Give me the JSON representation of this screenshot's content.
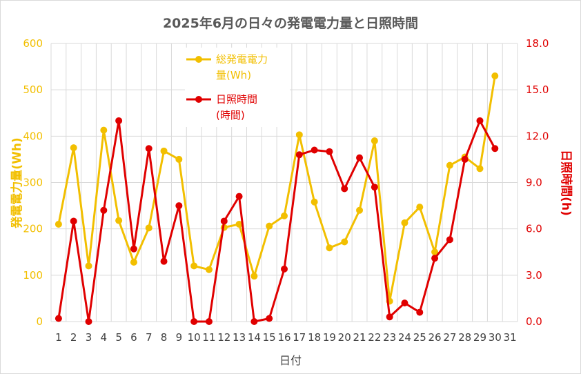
{
  "chart_data": {
    "type": "line",
    "title": "2025年6月の日々の発電電力量と日照時間",
    "xlabel": "日付",
    "ylabel_left": "発電電力量(Wh)",
    "ylabel_right": "日照時間(h)",
    "ylim_left": [
      0,
      600
    ],
    "ylim_right": [
      0,
      18
    ],
    "yticks_left": [
      "0",
      "100",
      "200",
      "300",
      "400",
      "500",
      "600"
    ],
    "yticks_right": [
      "0.0",
      "3.0",
      "6.0",
      "9.0",
      "12.0",
      "15.0",
      "18.0"
    ],
    "categories": [
      "1",
      "2",
      "3",
      "4",
      "5",
      "6",
      "7",
      "8",
      "9",
      "10",
      "11",
      "12",
      "13",
      "14",
      "15",
      "16",
      "17",
      "18",
      "19",
      "20",
      "21",
      "22",
      "23",
      "24",
      "25",
      "26",
      "27",
      "28",
      "29",
      "30",
      "31"
    ],
    "grid": true,
    "legend_position": "top-left inside plot",
    "series": [
      {
        "name": "総発電電力量(Wh)",
        "legend_lines": [
          "総発電電力",
          "量(Wh)"
        ],
        "axis": "left",
        "color": "#f2bf00",
        "values": [
          210,
          375,
          120,
          413,
          218,
          128,
          202,
          368,
          350,
          120,
          112,
          203,
          210,
          98,
          206,
          228,
          403,
          258,
          159,
          172,
          240,
          390,
          44,
          213,
          247,
          150,
          337,
          355,
          330,
          530,
          null
        ]
      },
      {
        "name": "日照時間(時間)",
        "legend_lines": [
          "日照時間",
          "(時間)"
        ],
        "axis": "right",
        "color": "#e00000",
        "values": [
          0.2,
          6.5,
          0.0,
          7.2,
          13.0,
          4.7,
          11.2,
          3.9,
          7.5,
          0.0,
          0.0,
          6.5,
          8.1,
          0.0,
          0.2,
          3.4,
          10.8,
          11.1,
          11.0,
          8.6,
          10.6,
          8.7,
          0.3,
          1.2,
          0.6,
          4.1,
          5.3,
          10.5,
          13.0,
          11.2,
          null
        ]
      }
    ]
  }
}
